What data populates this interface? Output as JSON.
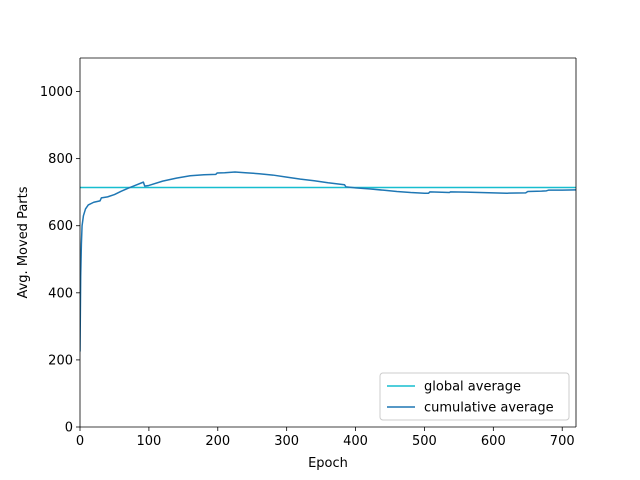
{
  "chart_data": {
    "type": "line",
    "title": "",
    "xlabel": "Epoch",
    "ylabel": "Avg. Moved Parts",
    "xlim": [
      0,
      720
    ],
    "ylim": [
      0,
      1100
    ],
    "xticks": [
      0,
      100,
      200,
      300,
      400,
      500,
      600,
      700
    ],
    "yticks": [
      0,
      200,
      400,
      600,
      800,
      1000
    ],
    "grid": false,
    "legend_position": "lower-right",
    "series": [
      {
        "name": "global average",
        "color": "#17becf",
        "kind": "hline",
        "y": 714
      },
      {
        "name": "cumulative average",
        "color": "#1f77b4",
        "kind": "line",
        "x": [
          0,
          1,
          2,
          3,
          5,
          8,
          12,
          20,
          29,
          31,
          40,
          50,
          60,
          70,
          80,
          92,
          94,
          100,
          120,
          140,
          160,
          180,
          197,
          199,
          210,
          225,
          240,
          260,
          280,
          300,
          320,
          340,
          360,
          384,
          386,
          400,
          420,
          440,
          460,
          480,
          500,
          506,
          508,
          520,
          536,
          538,
          560,
          580,
          600,
          620,
          647,
          650,
          670,
          677,
          680,
          700,
          720
        ],
        "y": [
          225,
          450,
          545,
          600,
          630,
          650,
          662,
          670,
          674,
          683,
          686,
          693,
          703,
          712,
          720,
          730,
          718,
          720,
          733,
          742,
          749,
          752,
          753,
          757,
          758,
          760,
          758,
          755,
          751,
          745,
          739,
          734,
          728,
          722,
          716,
          713,
          710,
          706,
          702,
          699,
          697,
          697,
          701,
          700,
          699,
          701,
          700,
          699,
          698,
          697,
          698,
          702,
          703,
          704,
          706,
          706,
          707
        ]
      }
    ]
  }
}
